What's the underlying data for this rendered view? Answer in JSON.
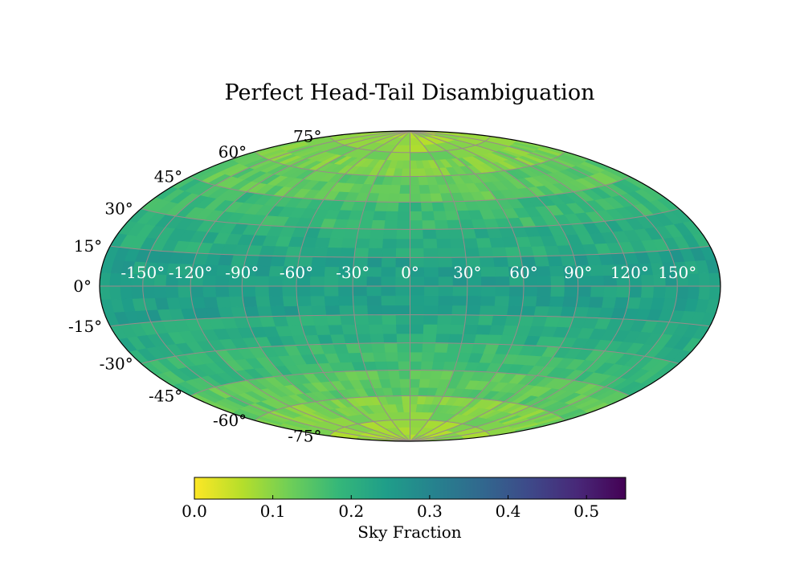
{
  "title": "Perfect Head-Tail Disambiguation",
  "colorbar": {
    "label": "Sky Fraction",
    "range": [
      0.0,
      0.55
    ],
    "ticks": [
      "0.0",
      "0.1",
      "0.2",
      "0.3",
      "0.4",
      "0.5"
    ],
    "colormap": "viridis_r"
  },
  "chart_data": {
    "type": "heatmap",
    "projection": "hammer",
    "title": "Perfect Head-Tail Disambiguation",
    "value_label": "Sky Fraction",
    "vmin": 0.0,
    "vmax": 0.55,
    "grid": true,
    "longitude_tick_labels": [
      "-150°",
      "-120°",
      "-90°",
      "-60°",
      "-30°",
      "0°",
      "30°",
      "60°",
      "90°",
      "120°",
      "150°"
    ],
    "latitude_tick_labels": [
      "75°",
      "60°",
      "45°",
      "30°",
      "15°",
      "0°",
      "-15°",
      "-30°",
      "-45°",
      "-60°",
      "-75°"
    ],
    "latitude_bands": [
      {
        "lat_range": [
          75,
          90
        ],
        "value": 0.085
      },
      {
        "lat_range": [
          60,
          75
        ],
        "value": 0.11
      },
      {
        "lat_range": [
          45,
          60
        ],
        "value": 0.14
      },
      {
        "lat_range": [
          30,
          45
        ],
        "value": 0.18
      },
      {
        "lat_range": [
          15,
          30
        ],
        "value": 0.21
      },
      {
        "lat_range": [
          0,
          15
        ],
        "value": 0.24
      },
      {
        "lat_range": [
          -15,
          0
        ],
        "value": 0.24
      },
      {
        "lat_range": [
          -30,
          -15
        ],
        "value": 0.21
      },
      {
        "lat_range": [
          -45,
          -30
        ],
        "value": 0.18
      },
      {
        "lat_range": [
          -60,
          -45
        ],
        "value": 0.14
      },
      {
        "lat_range": [
          -75,
          -60
        ],
        "value": 0.11
      },
      {
        "lat_range": [
          -90,
          -75
        ],
        "value": 0.085
      }
    ],
    "colors": {
      "grid": "#9a8a8a",
      "tick_label_on_map": "#ffffff",
      "colormap_stops": [
        "#fde725",
        "#b5de2b",
        "#6ece58",
        "#35b779",
        "#1f9e89",
        "#26828e",
        "#31688e",
        "#3e4989",
        "#482878",
        "#440154"
      ]
    }
  }
}
